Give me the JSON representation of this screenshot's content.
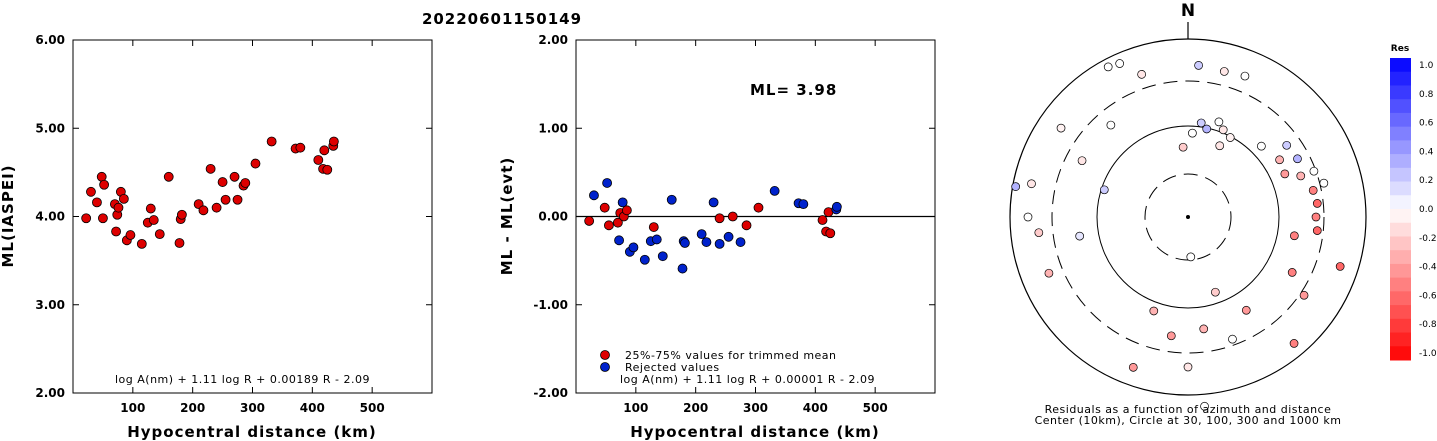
{
  "title": "20220601150149",
  "chart_data": [
    {
      "type": "scatter",
      "xlabel": "Hypocentral distance (km)",
      "ylabel": "ML(IASPEI)",
      "xlim": [
        0,
        600
      ],
      "ylim": [
        2.0,
        6.0
      ],
      "xticks": [
        "100",
        "200",
        "300",
        "400",
        "500"
      ],
      "yticks": [
        "2.00",
        "3.00",
        "4.00",
        "5.00",
        "6.00"
      ],
      "formula": "log A(nm) + 1.11 log R + 0.00189 R - 2.09",
      "series": [
        {
          "color": "#dd0000",
          "points": [
            [
              22,
              3.98
            ],
            [
              30,
              4.28
            ],
            [
              40,
              4.16
            ],
            [
              48,
              4.45
            ],
            [
              50,
              3.98
            ],
            [
              52,
              4.36
            ],
            [
              70,
              4.14
            ],
            [
              72,
              3.83
            ],
            [
              74,
              4.02
            ],
            [
              76,
              4.1
            ],
            [
              80,
              4.28
            ],
            [
              85,
              4.2
            ],
            [
              90,
              3.73
            ],
            [
              96,
              3.79
            ],
            [
              115,
              3.69
            ],
            [
              125,
              3.93
            ],
            [
              130,
              4.09
            ],
            [
              135,
              3.96
            ],
            [
              145,
              3.8
            ],
            [
              160,
              4.45
            ],
            [
              178,
              3.7
            ],
            [
              180,
              3.97
            ],
            [
              182,
              4.02
            ],
            [
              210,
              4.14
            ],
            [
              218,
              4.07
            ],
            [
              230,
              4.54
            ],
            [
              240,
              4.1
            ],
            [
              250,
              4.39
            ],
            [
              255,
              4.19
            ],
            [
              270,
              4.45
            ],
            [
              275,
              4.19
            ],
            [
              285,
              4.35
            ],
            [
              288,
              4.38
            ],
            [
              305,
              4.6
            ],
            [
              332,
              4.85
            ],
            [
              372,
              4.77
            ],
            [
              380,
              4.78
            ],
            [
              410,
              4.64
            ],
            [
              418,
              4.54
            ],
            [
              420,
              4.75
            ],
            [
              425,
              4.53
            ],
            [
              435,
              4.8
            ],
            [
              436,
              4.85
            ]
          ]
        }
      ]
    },
    {
      "type": "scatter",
      "xlabel": "Hypocentral distance (km)",
      "ylabel": "ML - ML(evt)",
      "xlim": [
        0,
        600
      ],
      "ylim": [
        -2.0,
        2.0
      ],
      "xticks": [
        "100",
        "200",
        "300",
        "400",
        "500"
      ],
      "yticks": [
        "-2.00",
        "-1.00",
        "0.00",
        "1.00",
        "2.00"
      ],
      "annotation": "ML= 3.98",
      "formula": "log A(nm) + 1.11 log R + 0.00001 R - 2.09",
      "legend": [
        {
          "label": "25%-75% values for trimmed mean",
          "color": "#dd0000"
        },
        {
          "label": "Rejected values",
          "color": "#0022cc"
        }
      ],
      "series": [
        {
          "color": "#dd0000",
          "points": [
            [
              22,
              -0.05
            ],
            [
              48,
              0.1
            ],
            [
              55,
              -0.1
            ],
            [
              70,
              -0.07
            ],
            [
              74,
              0.04
            ],
            [
              80,
              0.0
            ],
            [
              85,
              0.07
            ],
            [
              130,
              -0.12
            ],
            [
              240,
              -0.02
            ],
            [
              262,
              0.0
            ],
            [
              285,
              -0.1
            ],
            [
              305,
              0.1
            ],
            [
              412,
              -0.04
            ],
            [
              418,
              -0.17
            ],
            [
              422,
              0.05
            ],
            [
              425,
              -0.19
            ]
          ]
        },
        {
          "color": "#0022cc",
          "points": [
            [
              30,
              0.24
            ],
            [
              52,
              0.38
            ],
            [
              72,
              -0.27
            ],
            [
              78,
              0.16
            ],
            [
              90,
              -0.4
            ],
            [
              96,
              -0.35
            ],
            [
              115,
              -0.49
            ],
            [
              125,
              -0.28
            ],
            [
              135,
              -0.26
            ],
            [
              145,
              -0.45
            ],
            [
              160,
              0.19
            ],
            [
              180,
              -0.28
            ],
            [
              178,
              -0.59
            ],
            [
              182,
              -0.3
            ],
            [
              210,
              -0.2
            ],
            [
              218,
              -0.29
            ],
            [
              230,
              0.16
            ],
            [
              240,
              -0.31
            ],
            [
              255,
              -0.23
            ],
            [
              275,
              -0.29
            ],
            [
              332,
              0.29
            ],
            [
              372,
              0.15
            ],
            [
              380,
              0.14
            ],
            [
              435,
              0.08
            ],
            [
              436,
              0.11
            ]
          ]
        }
      ]
    }
  ],
  "polar": {
    "north_label": "N",
    "caption_line1": "Residuals as a function of azimuth and distance",
    "caption_line2": "Center (10km), Circle at 30, 100, 300 and 1000 km"
  },
  "colorbar": {
    "title": "Res",
    "labels": [
      "1.0",
      "0.8",
      "0.6",
      "0.4",
      "0.2",
      "0.0",
      "-0.2",
      "-0.4",
      "-0.6",
      "-0.8",
      "-1.0"
    ]
  }
}
